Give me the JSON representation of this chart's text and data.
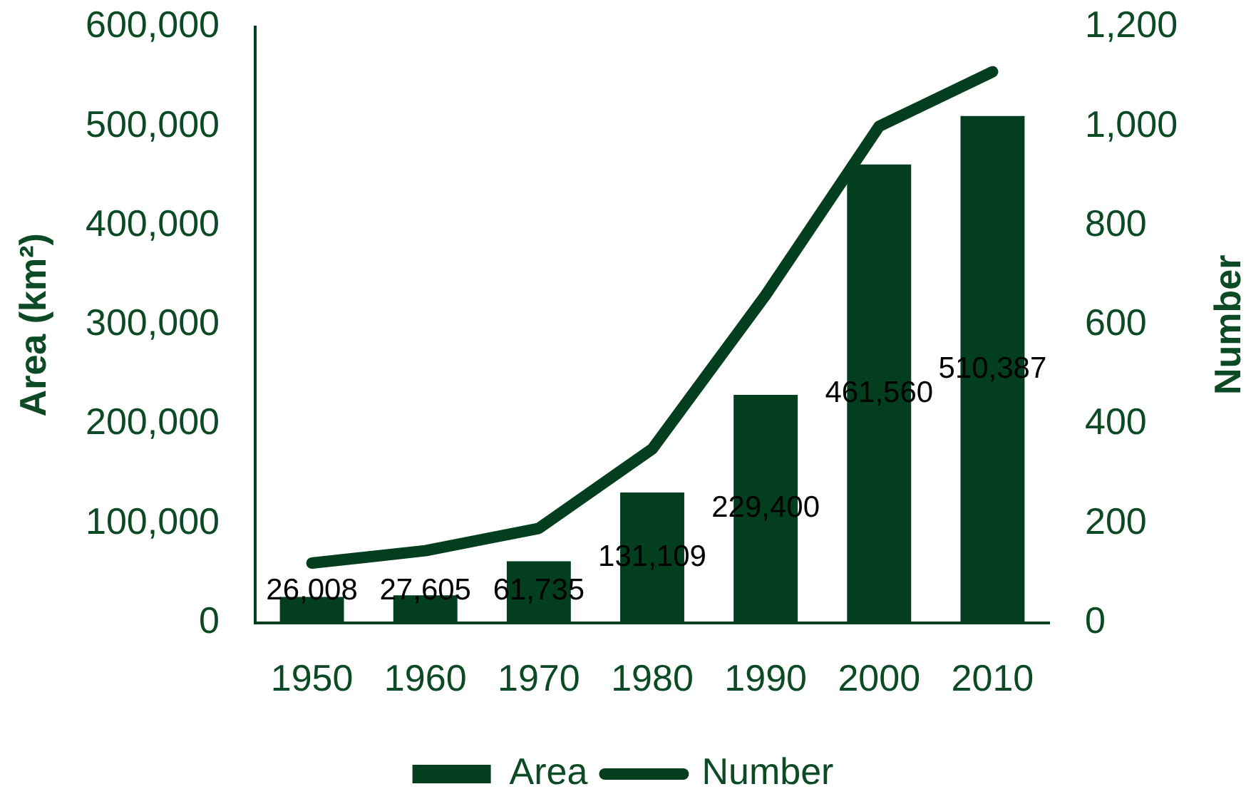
{
  "chart_data": {
    "type": "bar",
    "categories": [
      "1950",
      "1960",
      "1970",
      "1980",
      "1990",
      "2000",
      "2010"
    ],
    "ylabel": "Area (km²)",
    "y2label": "Number",
    "series": [
      {
        "name": "Area",
        "color": "#033f1e",
        "values": [
          26008,
          27605,
          61735,
          131109,
          229400,
          461560,
          510387
        ],
        "value_labels": [
          "26,008",
          "27,605",
          "61,735",
          "131,109",
          "229,400",
          "461,560",
          "510,387"
        ]
      },
      {
        "name": "Number",
        "type": "line",
        "axis": "y2",
        "color": "#033f1e",
        "values": [
          120,
          145,
          190,
          350,
          660,
          1000,
          1110
        ]
      }
    ],
    "ylim": [
      0,
      600000
    ],
    "yticks": [
      0,
      {
        "value": 100000,
        "label": "100,000"
      },
      {
        "value": 200000,
        "label": "200,000"
      },
      {
        "value": 300000,
        "label": "300,000"
      },
      {
        "value": 400000,
        "label": "400,000"
      },
      {
        "value": 500000,
        "label": "500,000"
      },
      {
        "value": 600000,
        "label": "600,000"
      }
    ],
    "y2lim": [
      0,
      1200
    ],
    "y2ticks": [
      0,
      200,
      400,
      600,
      800,
      {
        "value": 1000,
        "label": "1,000"
      },
      {
        "value": 1200,
        "label": "1,200"
      }
    ],
    "grid": false,
    "legend": "bottom"
  }
}
